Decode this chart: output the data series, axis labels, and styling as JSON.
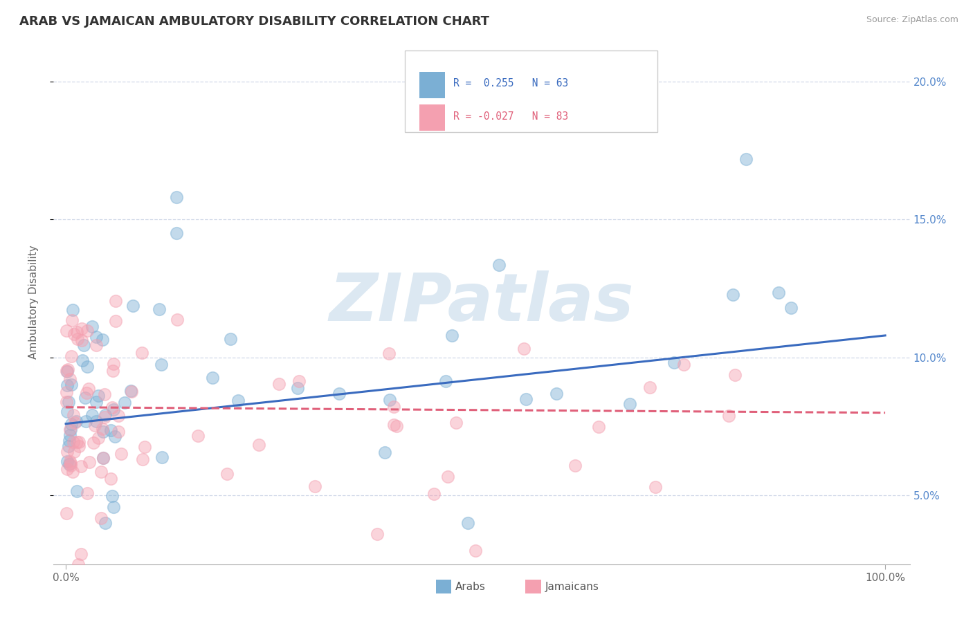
{
  "title": "ARAB VS JAMAICAN AMBULATORY DISABILITY CORRELATION CHART",
  "source": "Source: ZipAtlas.com",
  "ylabel": "Ambulatory Disability",
  "watermark": "ZIPatlas",
  "xlim": [
    0,
    1.0
  ],
  "ylim": [
    0.025,
    0.215
  ],
  "ytick_values": [
    0.05,
    0.1,
    0.15,
    0.2
  ],
  "ytick_labels": [
    "5.0%",
    "10.0%",
    "15.0%",
    "20.0%"
  ],
  "arab_R": "0.255",
  "arab_N": "63",
  "jamaican_R": "-0.027",
  "jamaican_N": "83",
  "arab_color": "#7bafd4",
  "jamaican_color": "#f4a0b0",
  "arab_line_color": "#3a6bbf",
  "jamaican_line_color": "#e0607a",
  "arab_line_start_y": 0.076,
  "arab_line_end_y": 0.108,
  "jamaican_line_start_y": 0.082,
  "jamaican_line_end_y": 0.08
}
